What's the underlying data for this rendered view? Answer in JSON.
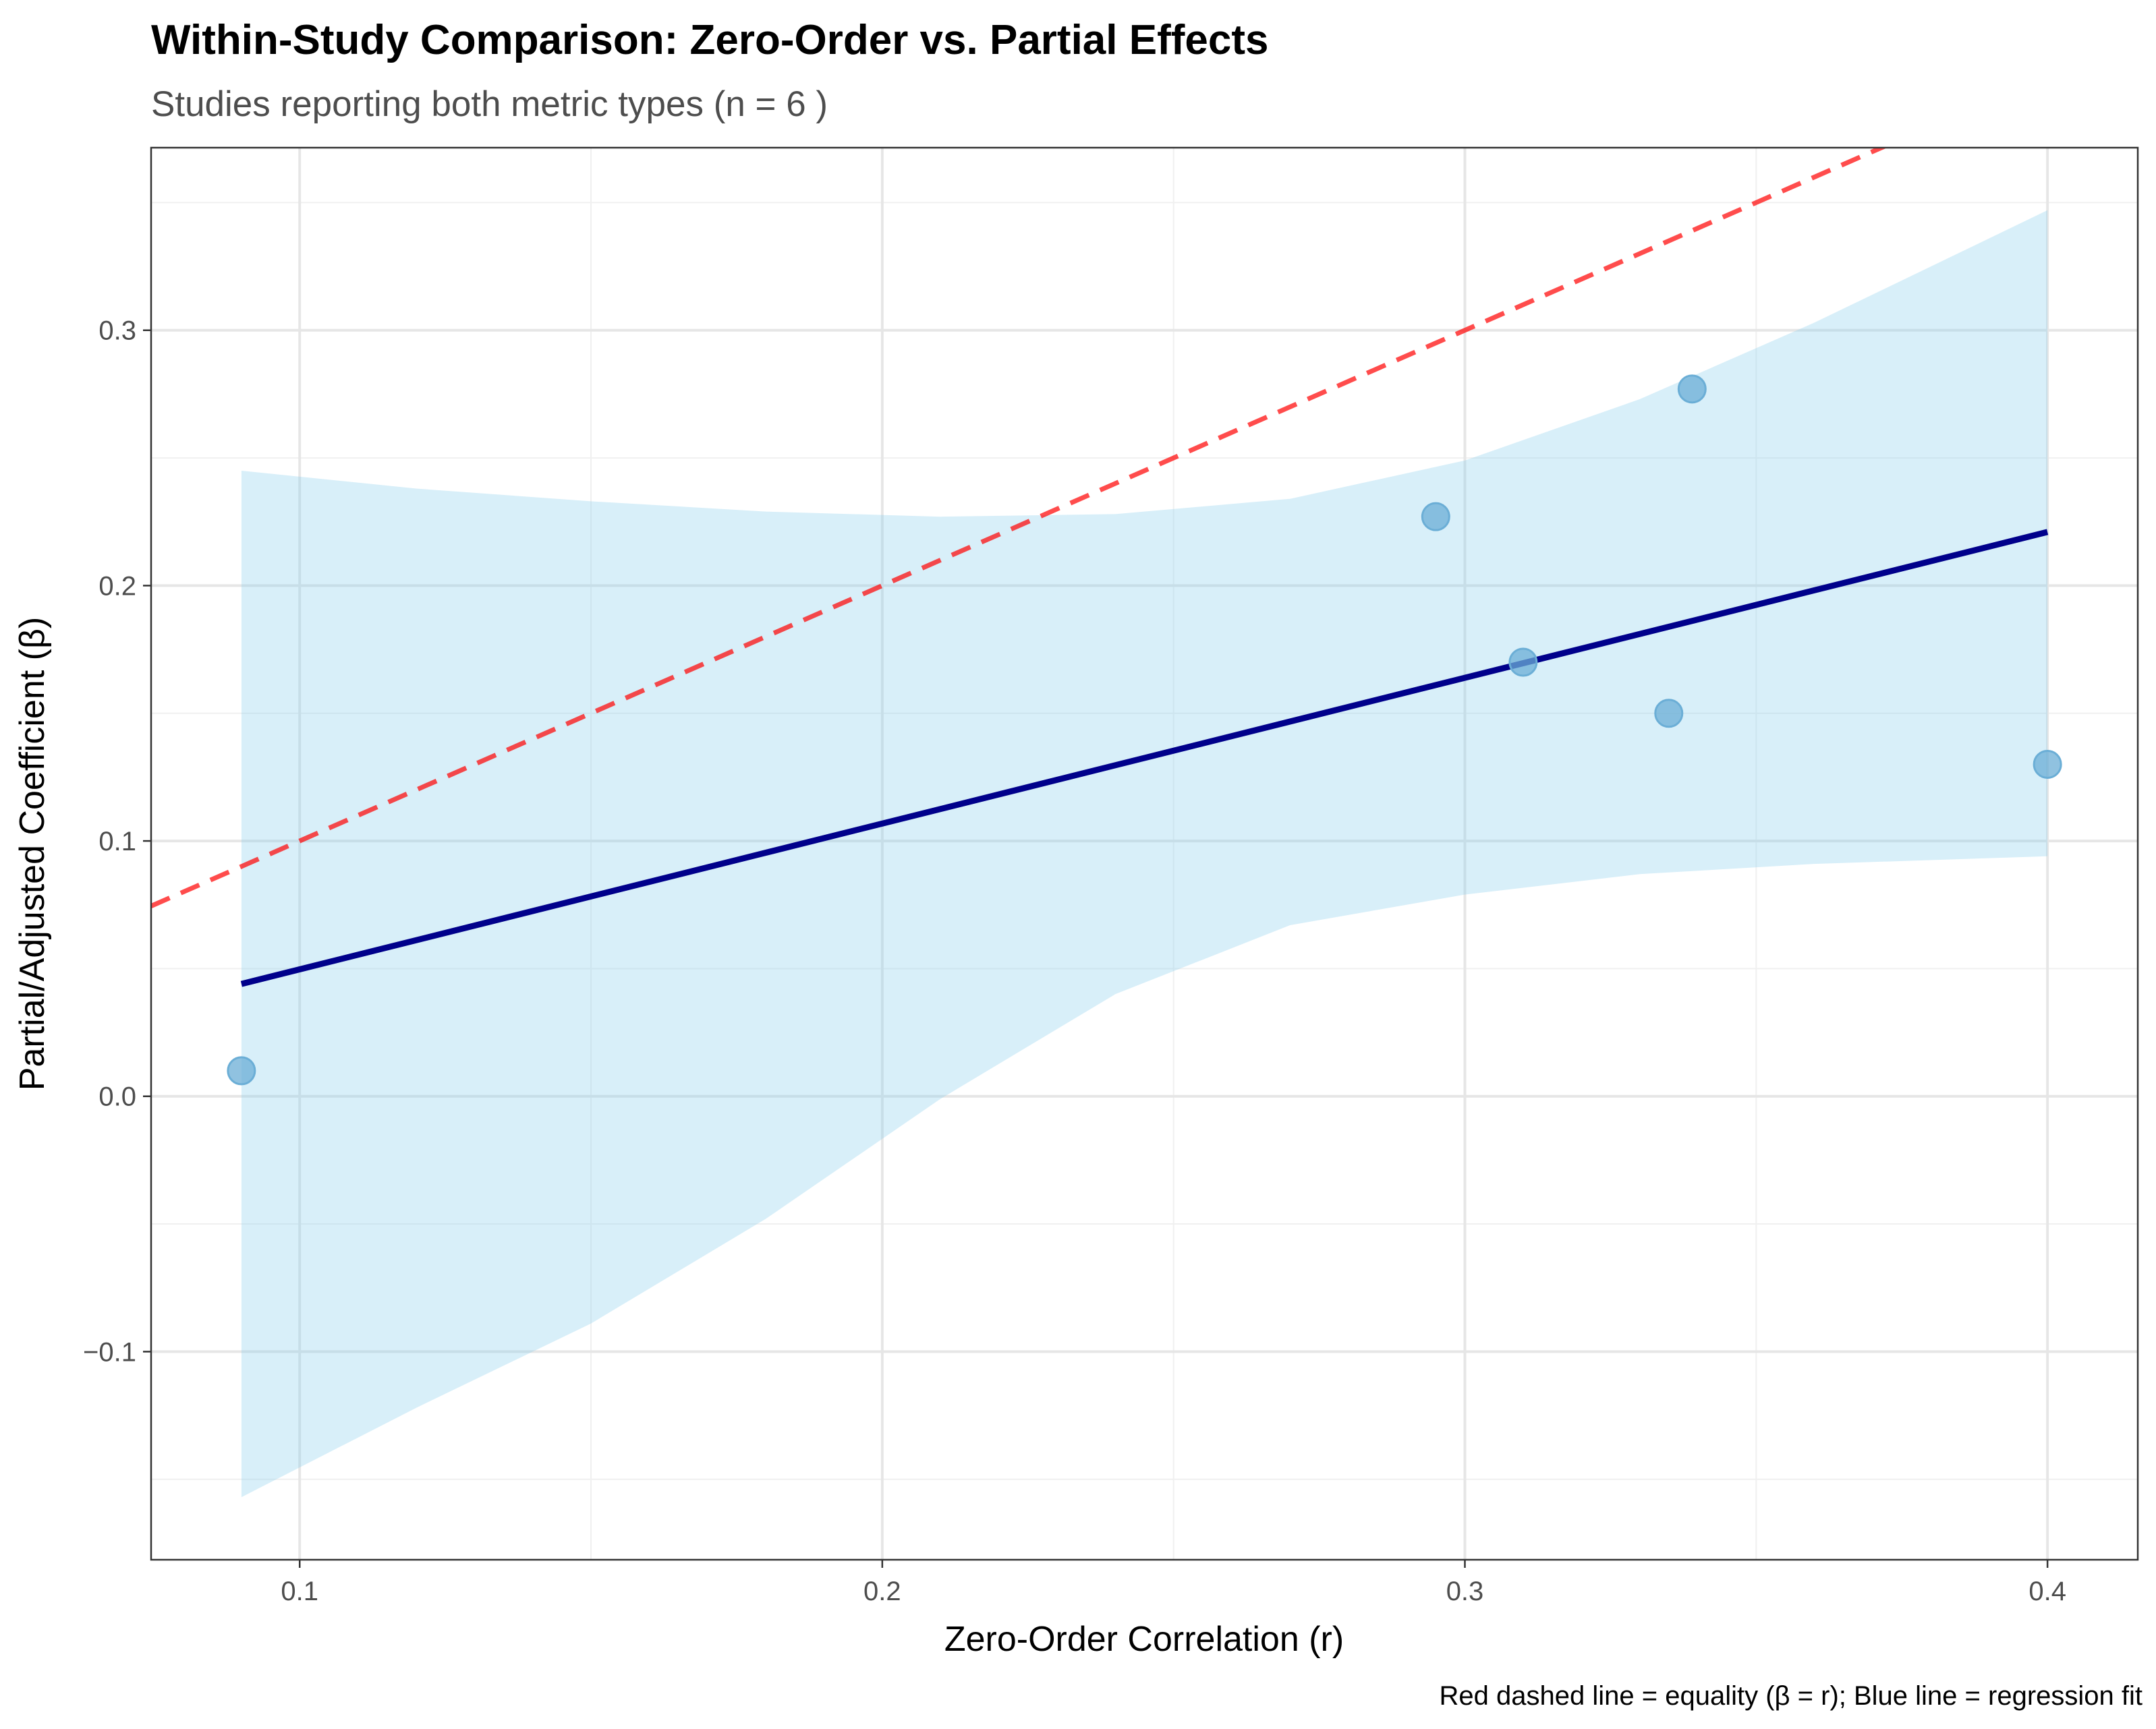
{
  "chart_data": {
    "type": "scatter",
    "title": "Within-Study Comparison: Zero-Order vs. Partial Effects",
    "subtitle": "Studies reporting both metric types (n = 6 )",
    "xlabel": "Zero-Order Correlation (r)",
    "ylabel": "Partial/Adjusted Coefficient (β)",
    "caption": "Red dashed line = equality (β = r); Blue line = regression fit",
    "xlim": [
      0.0745,
      0.4155
    ],
    "ylim": [
      -0.1815,
      0.3715
    ],
    "x_ticks": [
      0.1,
      0.2,
      0.3,
      0.4
    ],
    "x_tick_labels": [
      "0.1",
      "0.2",
      "0.3",
      "0.4"
    ],
    "y_ticks": [
      -0.1,
      0.0,
      0.1,
      0.2,
      0.3
    ],
    "y_tick_labels": [
      "−0.1",
      "0.0",
      "0.1",
      "0.2",
      "0.3"
    ],
    "grid": true,
    "points": {
      "x": [
        0.09,
        0.295,
        0.31,
        0.335,
        0.339,
        0.4
      ],
      "y": [
        0.01,
        0.227,
        0.17,
        0.15,
        0.277,
        0.13
      ],
      "color": "#6baed6"
    },
    "equality_line": {
      "slope": 1,
      "intercept": 0,
      "color": "#ff0000",
      "style": "dashed"
    },
    "regression_fit": {
      "x": [
        0.09,
        0.4
      ],
      "y": [
        0.044,
        0.221
      ],
      "color": "#00008b",
      "ci_x": [
        0.09,
        0.12,
        0.15,
        0.18,
        0.21,
        0.24,
        0.27,
        0.3,
        0.33,
        0.36,
        0.4
      ],
      "ci_upper": [
        0.245,
        0.238,
        0.233,
        0.229,
        0.227,
        0.228,
        0.234,
        0.249,
        0.273,
        0.303,
        0.347
      ],
      "ci_lower": [
        -0.157,
        -0.122,
        -0.089,
        -0.048,
        -0.001,
        0.04,
        0.067,
        0.079,
        0.087,
        0.091,
        0.094
      ],
      "ci_color": "#87ceeb"
    }
  }
}
